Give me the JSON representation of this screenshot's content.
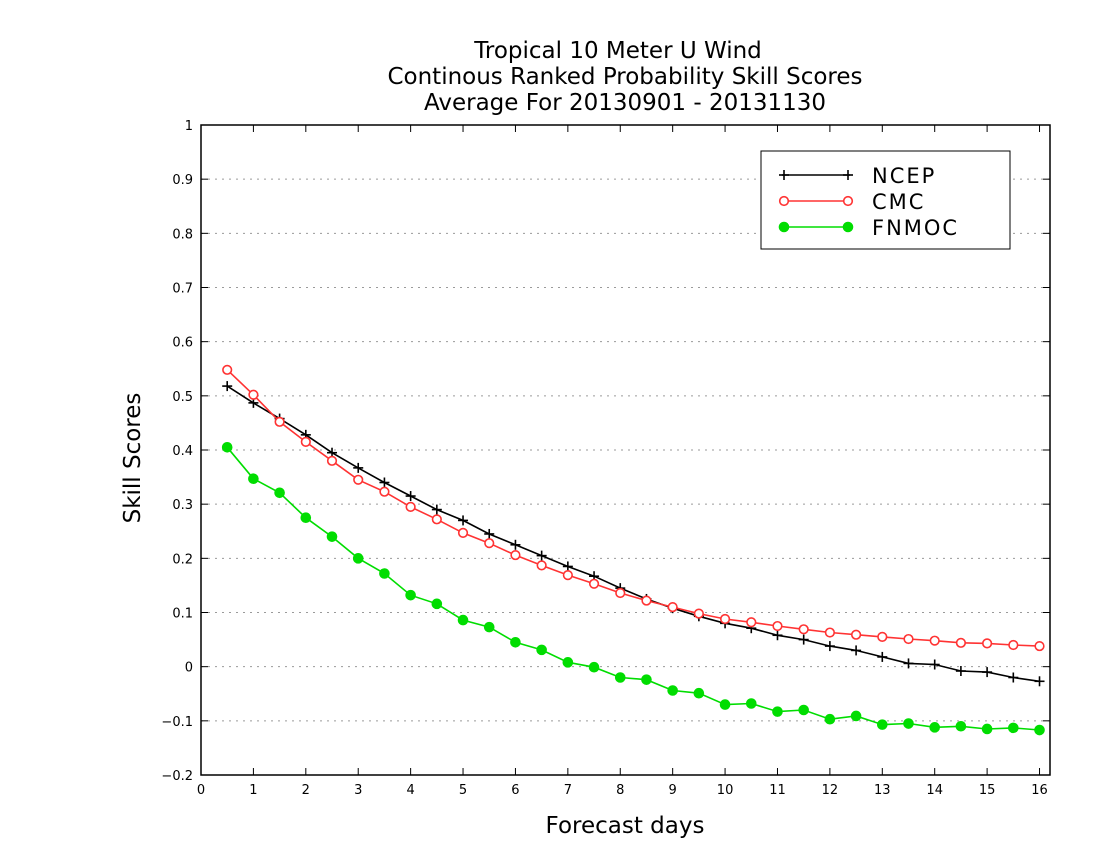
{
  "chart_data": {
    "type": "line",
    "title": [
      "Tropical 10 Meter U Wind",
      "Continous Ranked Probability Skill Scores",
      "Average For 20130901 - 20131130"
    ],
    "xlabel": "Forecast days",
    "ylabel": "Skill Scores",
    "xlim": [
      0,
      16.2
    ],
    "ylim": [
      -0.2,
      1.0
    ],
    "xticks": [
      0,
      1,
      2,
      3,
      4,
      5,
      6,
      7,
      8,
      9,
      10,
      11,
      12,
      13,
      14,
      15,
      16
    ],
    "yticks": [
      -0.2,
      -0.1,
      0,
      0.1,
      0.2,
      0.3,
      0.4,
      0.5,
      0.6,
      0.7,
      0.8,
      0.9,
      1
    ],
    "ytick_labels": [
      "−0.2",
      "−0.1",
      "0",
      "0.1",
      "0.2",
      "0.3",
      "0.4",
      "0.5",
      "0.6",
      "0.7",
      "0.8",
      "0.9",
      "1"
    ],
    "grid": true,
    "legend_position": "top-right",
    "x": [
      0.5,
      1,
      1.5,
      2,
      2.5,
      3,
      3.5,
      4,
      4.5,
      5,
      5.5,
      6,
      6.5,
      7,
      7.5,
      8,
      8.5,
      9,
      9.5,
      10,
      10.5,
      11,
      11.5,
      12,
      12.5,
      13,
      13.5,
      14,
      14.5,
      15,
      15.5,
      16
    ],
    "series": [
      {
        "name": "NCEP",
        "color": "#000000",
        "marker": "plus",
        "values": [
          0.518,
          0.487,
          0.458,
          0.428,
          0.395,
          0.367,
          0.34,
          0.315,
          0.29,
          0.27,
          0.245,
          0.225,
          0.205,
          0.185,
          0.167,
          0.145,
          0.125,
          0.108,
          0.093,
          0.08,
          0.071,
          0.058,
          0.05,
          0.038,
          0.03,
          0.018,
          0.006,
          0.004,
          -0.008,
          -0.01,
          -0.02,
          -0.027
        ]
      },
      {
        "name": "CMC",
        "color": "#ff3333",
        "marker": "open-circle",
        "values": [
          0.548,
          0.502,
          0.452,
          0.415,
          0.38,
          0.345,
          0.323,
          0.295,
          0.272,
          0.247,
          0.228,
          0.206,
          0.187,
          0.169,
          0.153,
          0.136,
          0.122,
          0.11,
          0.098,
          0.088,
          0.082,
          0.075,
          0.069,
          0.063,
          0.059,
          0.055,
          0.051,
          0.048,
          0.044,
          0.043,
          0.04,
          0.038
        ]
      },
      {
        "name": "FNMOC",
        "color": "#00dd00",
        "marker": "filled-circle",
        "values": [
          0.405,
          0.347,
          0.321,
          0.275,
          0.24,
          0.2,
          0.172,
          0.132,
          0.116,
          0.086,
          0.073,
          0.045,
          0.031,
          0.008,
          -0.001,
          -0.02,
          -0.024,
          -0.044,
          -0.049,
          -0.07,
          -0.068,
          -0.083,
          -0.08,
          -0.097,
          -0.091,
          -0.107,
          -0.105,
          -0.112,
          -0.11,
          -0.115,
          -0.113,
          -0.117
        ]
      }
    ]
  }
}
